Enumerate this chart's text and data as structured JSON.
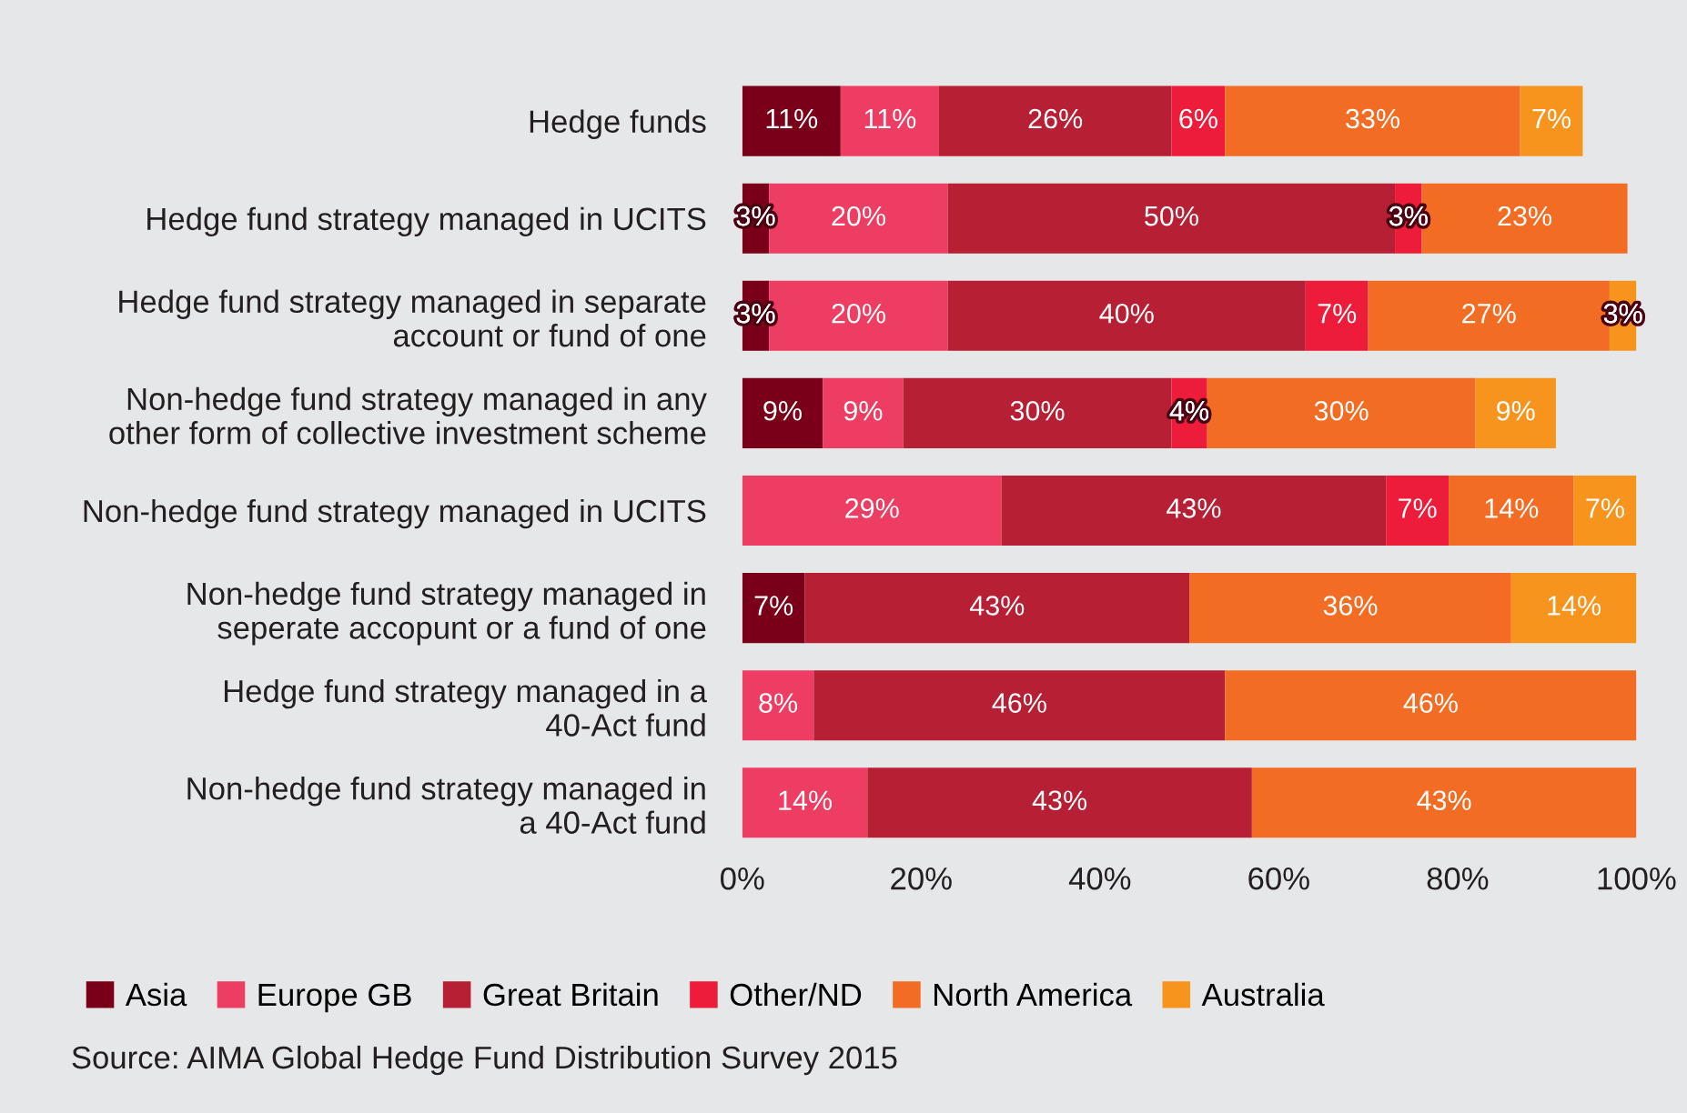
{
  "chart_data": {
    "type": "bar",
    "orientation": "horizontal",
    "stacked": true,
    "categories": [
      "Hedge funds",
      "Hedge fund strategy managed in UCITS",
      "Hedge fund strategy managed in separate\naccount or fund of one",
      "Non-hedge fund strategy managed in any\nother form of collective investment scheme",
      "Non-hedge fund strategy managed in UCITS",
      "Non-hedge fund strategy managed in\nseperate accopunt or a fund of one",
      "Hedge fund strategy managed in a\n40-Act fund",
      "Non-hedge fund strategy managed in\na 40-Act fund"
    ],
    "series": [
      {
        "name": "Asia",
        "color": "#7a0019",
        "values": [
          11,
          3,
          3,
          9,
          null,
          7,
          null,
          null
        ],
        "value_labels": [
          "11%",
          "3%",
          "3%",
          "9%",
          null,
          "7%",
          null,
          null
        ]
      },
      {
        "name": "Europe GB",
        "color": "#ee3d63",
        "values": [
          11,
          20,
          20,
          9,
          29,
          null,
          8,
          14
        ],
        "value_labels": [
          "11%",
          "20%",
          "20%",
          "9%",
          "29%",
          null,
          "8%",
          "14%"
        ]
      },
      {
        "name": "Great Britain",
        "color": "#b71f34",
        "values": [
          26,
          50,
          40,
          30,
          43,
          43,
          46,
          43
        ],
        "value_labels": [
          "26%",
          "50%",
          "40%",
          "30%",
          "43%",
          "43%",
          "46%",
          "43%"
        ]
      },
      {
        "name": "Other/ND",
        "color": "#ec1c3a",
        "values": [
          6,
          3,
          7,
          4,
          7,
          null,
          null,
          null
        ],
        "value_labels": [
          "6%",
          "3%",
          "7%",
          "4%",
          "7%",
          null,
          null,
          null
        ]
      },
      {
        "name": "North America",
        "color": "#f26d23",
        "values": [
          33,
          23,
          27,
          30,
          14,
          36,
          46,
          43
        ],
        "value_labels": [
          "33%",
          "23%",
          "27%",
          "30%",
          "14%",
          "36%",
          "46%",
          "43%"
        ]
      },
      {
        "name": "Australia",
        "color": "#f7941d",
        "values": [
          7,
          null,
          3,
          9,
          7,
          14,
          null,
          null
        ],
        "value_labels": [
          "7%",
          null,
          "3%",
          "9%",
          "7%",
          "14%",
          null,
          null
        ]
      }
    ],
    "xlim": [
      0,
      100
    ],
    "xticks": [
      {
        "value": 0,
        "label": "0%"
      },
      {
        "value": 20,
        "label": "20%"
      },
      {
        "value": 40,
        "label": "40%"
      },
      {
        "value": 60,
        "label": "60%"
      },
      {
        "value": 80,
        "label": "80%"
      },
      {
        "value": 100,
        "label": "100%"
      }
    ],
    "legend": "bottom",
    "annotations": [
      "Source: AIMA Global Hedge Fund Distribution Survey 2015"
    ]
  }
}
